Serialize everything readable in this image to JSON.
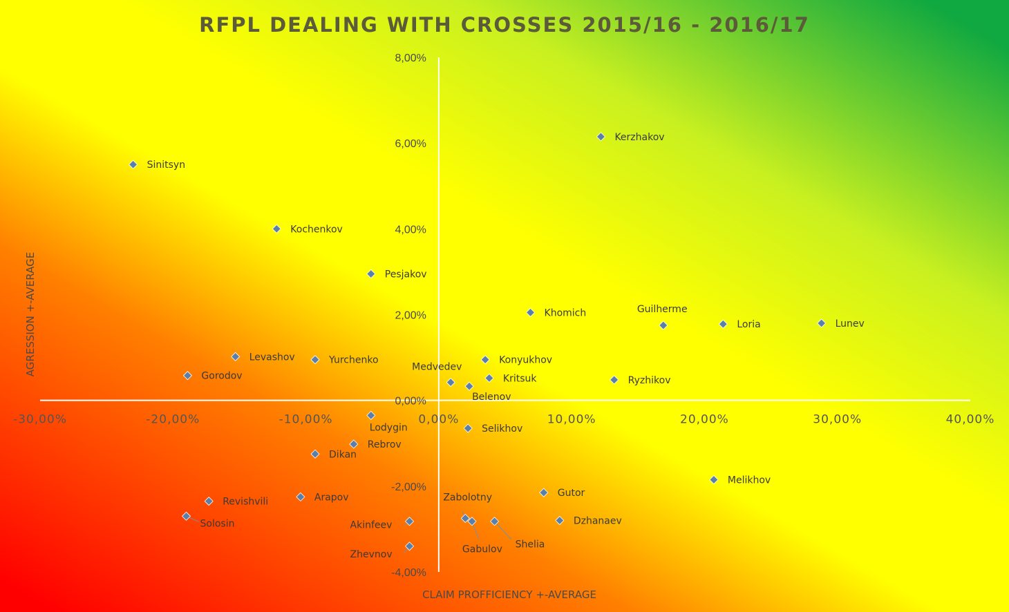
{
  "chart_data": {
    "type": "scatter",
    "title": "RFPL DEALING WITH CROSSES 2015/16 - 2016/17",
    "xlabel": "CLAIM PROFFICIENCY +-AVERAGE",
    "ylabel": "AGRESSION +-AVERAGE",
    "xlim": [
      -30,
      40
    ],
    "ylim": [
      -4,
      8
    ],
    "x_ticks": [
      -30,
      -20,
      -10,
      0,
      10,
      20,
      30,
      40
    ],
    "x_tick_labels": [
      "-30,00%",
      "-20,00%",
      "-10,00%",
      "0,00%",
      "10,00%",
      "20,00%",
      "30,00%",
      "40,00%"
    ],
    "y_ticks": [
      -4,
      -2,
      0,
      2,
      4,
      6,
      8
    ],
    "y_tick_labels": [
      "-4,00%",
      "-2,00%",
      "0,00%",
      "2,00%",
      "4,00%",
      "6,00%",
      "8,00%"
    ],
    "grid": false,
    "background": "diagonal gradient red-orange-yellow-green",
    "background_colors": [
      "#ff0000",
      "#ff8000",
      "#ffff00",
      "#ffff00",
      "#c8f020",
      "#10a840"
    ],
    "marker_color": "#5a7fa8",
    "points": [
      {
        "name": "Sinitsyn",
        "x": -23.0,
        "y": 5.5
      },
      {
        "name": "Kochenkov",
        "x": -12.2,
        "y": 4.0
      },
      {
        "name": "Pesjakov",
        "x": -5.1,
        "y": 2.95
      },
      {
        "name": "Kerzhakov",
        "x": 12.2,
        "y": 6.15
      },
      {
        "name": "Khomich",
        "x": 6.9,
        "y": 2.05
      },
      {
        "name": "Guilherme",
        "x": 16.9,
        "y": 1.75
      },
      {
        "name": "Loria",
        "x": 21.4,
        "y": 1.78
      },
      {
        "name": "Lunev",
        "x": 28.8,
        "y": 1.8
      },
      {
        "name": "Levashov",
        "x": -15.3,
        "y": 1.02
      },
      {
        "name": "Yurchenko",
        "x": -9.3,
        "y": 0.95
      },
      {
        "name": "Gorodov",
        "x": -18.9,
        "y": 0.58
      },
      {
        "name": "Konyukhov",
        "x": 3.5,
        "y": 0.95
      },
      {
        "name": "Medvedev",
        "x": 0.9,
        "y": 0.42
      },
      {
        "name": "Kritsuk",
        "x": 3.8,
        "y": 0.52
      },
      {
        "name": "Belenov",
        "x": 2.3,
        "y": 0.33
      },
      {
        "name": "Ryzhikov",
        "x": 13.2,
        "y": 0.48
      },
      {
        "name": "Lodygin",
        "x": -5.1,
        "y": -0.35
      },
      {
        "name": "Selikhov",
        "x": 2.2,
        "y": -0.65
      },
      {
        "name": "Rebrov",
        "x": -6.4,
        "y": -1.02
      },
      {
        "name": "Dikan",
        "x": -9.3,
        "y": -1.25
      },
      {
        "name": "Melikhov",
        "x": 20.7,
        "y": -1.85
      },
      {
        "name": "Gutor",
        "x": 7.9,
        "y": -2.15
      },
      {
        "name": "Revishvili",
        "x": -17.3,
        "y": -2.35
      },
      {
        "name": "Arapov",
        "x": -10.4,
        "y": -2.25
      },
      {
        "name": "Zabolotny",
        "x": 2.0,
        "y": -2.75
      },
      {
        "name": "Gabulov",
        "x": 2.5,
        "y": -2.82
      },
      {
        "name": "Shelia",
        "x": 4.2,
        "y": -2.82
      },
      {
        "name": "Dzhanaev",
        "x": 9.1,
        "y": -2.8
      },
      {
        "name": "Solosin",
        "x": -19.0,
        "y": -2.7
      },
      {
        "name": "Akinfeev",
        "x": -2.2,
        "y": -2.82
      },
      {
        "name": "Zhevnov",
        "x": -2.2,
        "y": -3.4
      }
    ]
  }
}
